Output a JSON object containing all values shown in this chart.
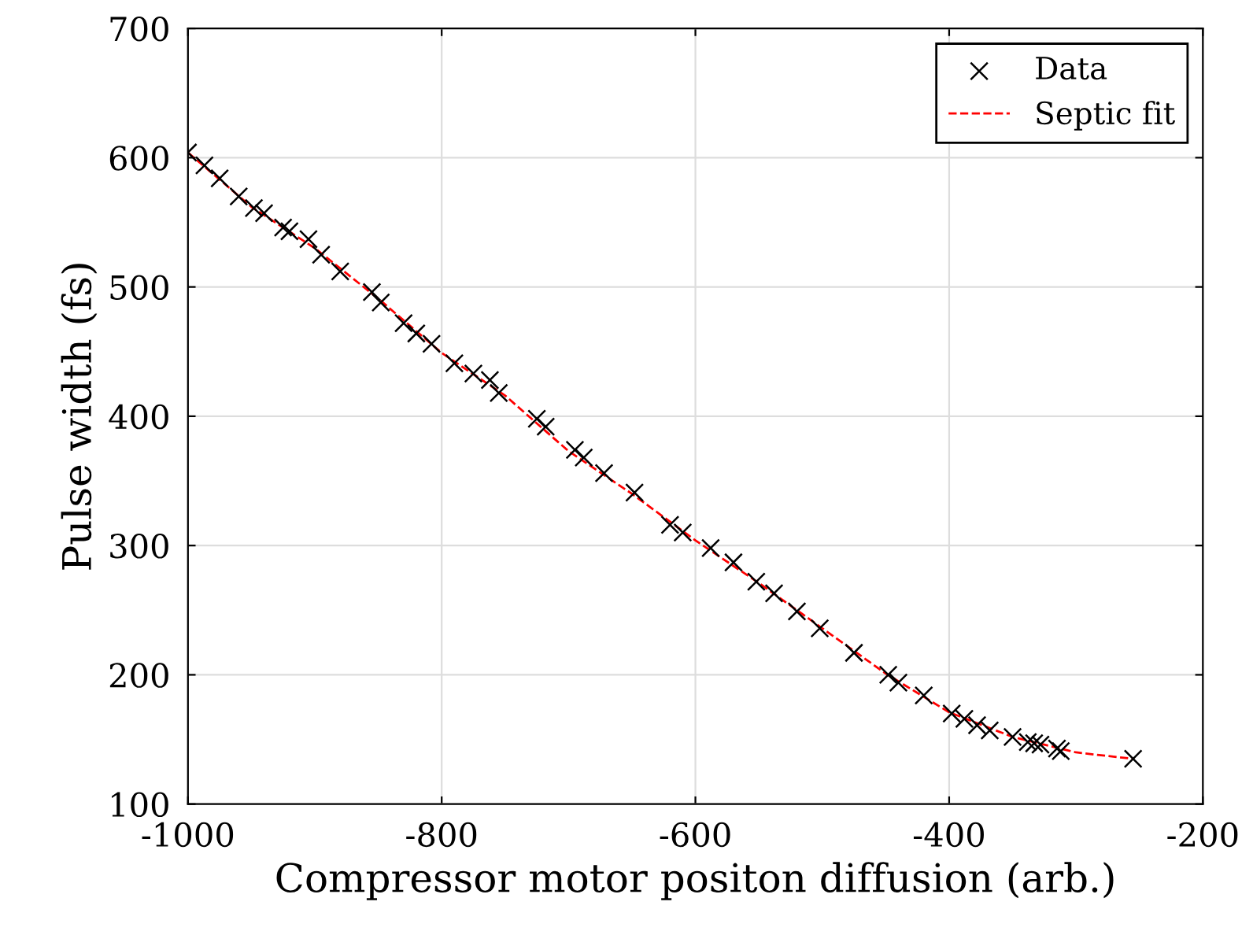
{
  "chart_data": {
    "type": "scatter",
    "xlabel": "Compressor motor positon diffusion (arb.)",
    "ylabel": "Pulse width (fs)",
    "xlim": [
      -1000,
      -200
    ],
    "xticks": [
      -1000,
      -800,
      -600,
      -400,
      -200
    ],
    "ylim": [
      100,
      700
    ],
    "yticks": [
      100,
      200,
      300,
      400,
      500,
      600,
      700
    ],
    "grid": true,
    "legend": "top right",
    "series": [
      {
        "name": "Data",
        "type": "scatter",
        "color": "#000000",
        "marker": "cross",
        "x": [
          -1000,
          -987,
          -975,
          -960,
          -948,
          -940,
          -925,
          -920,
          -905,
          -895,
          -880,
          -855,
          -848,
          -830,
          -820,
          -808,
          -790,
          -775,
          -762,
          -755,
          -725,
          -718,
          -695,
          -688,
          -672,
          -648,
          -620,
          -610,
          -588,
          -570,
          -552,
          -538,
          -520,
          -502,
          -475,
          -448,
          -440,
          -420,
          -398,
          -388,
          -378,
          -368,
          -350,
          -338,
          -333,
          -328,
          -315,
          -312,
          -255
        ],
        "values": [
          604,
          594,
          584,
          570,
          561,
          557,
          546,
          543,
          537,
          525,
          512,
          496,
          488,
          472,
          464,
          456,
          441,
          433,
          428,
          418,
          398,
          392,
          374,
          368,
          356,
          341,
          316,
          310,
          298,
          287,
          272,
          263,
          249,
          236,
          217,
          200,
          194,
          184,
          170,
          166,
          161,
          157,
          152,
          148,
          147,
          146,
          143,
          141,
          135
        ]
      },
      {
        "name": "Septic fit",
        "type": "line",
        "color": "#ff0000",
        "marker": "none",
        "line_style": "dashed",
        "x": [
          -1000,
          -950,
          -900,
          -850,
          -800,
          -750,
          -700,
          -650,
          -600,
          -550,
          -500,
          -450,
          -400,
          -350,
          -300,
          -255
        ],
        "values": [
          604,
          562,
          530,
          491,
          449,
          416,
          373,
          340,
          304,
          271,
          236,
          201,
          171,
          152,
          140,
          135
        ]
      }
    ]
  }
}
